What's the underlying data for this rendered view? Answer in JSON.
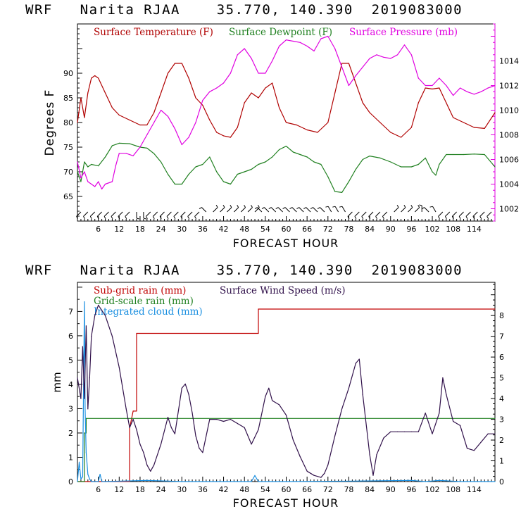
{
  "colors": {
    "temperature": "#b00000",
    "dewpoint": "#208020",
    "pressure": "#e000e0",
    "subgrid_rain": "#c00000",
    "gridscale_rain": "#208020",
    "cloud": "#1a8fe0",
    "wind_speed": "#30104a",
    "axis": "#000000",
    "wind_barb": "#000000"
  },
  "chart_data": [
    {
      "type": "line",
      "title": "WRF   Narita RJAA    35.770, 140.390  2019083000",
      "xlabel": "FORECAST HOUR",
      "ylabel": "Degrees F",
      "xlim": [
        0,
        120
      ],
      "ylim": [
        60,
        100
      ],
      "y2lim": [
        1001,
        1017
      ],
      "x_ticks": [
        6,
        12,
        18,
        24,
        30,
        36,
        42,
        48,
        54,
        60,
        66,
        72,
        78,
        84,
        90,
        96,
        102,
        108,
        114
      ],
      "x_tick_labels": [
        "6",
        "12",
        "18",
        "24",
        "30",
        "36",
        "42",
        "48",
        "54",
        "60",
        "66",
        "72",
        "78",
        "84",
        "90",
        "96",
        "102",
        "108",
        "114"
      ],
      "y_ticks": [
        65,
        70,
        75,
        80,
        85,
        90
      ],
      "y_tick_labels": [
        "65",
        "70",
        "75",
        "80",
        "85",
        "90"
      ],
      "y2_ticks": [
        1002,
        1004,
        1006,
        1008,
        1010,
        1012,
        1014
      ],
      "y2_tick_labels": [
        "1002",
        "1004",
        "1006",
        "1008",
        "1010",
        "1012",
        "1014"
      ],
      "grid": false,
      "legend_position": "top",
      "series": [
        {
          "name": "Surface Temperature (F)",
          "axis": "left",
          "x": [
            0,
            1,
            2,
            3,
            4,
            5,
            6,
            8,
            10,
            12,
            15,
            18,
            20,
            22,
            24,
            26,
            28,
            30,
            32,
            34,
            36,
            38,
            40,
            42,
            44,
            46,
            48,
            50,
            52,
            54,
            56,
            58,
            60,
            63,
            66,
            69,
            72,
            74,
            76,
            78,
            80,
            82,
            84,
            87,
            90,
            93,
            96,
            98,
            100,
            102,
            104,
            106,
            108,
            111,
            114,
            117,
            120
          ],
          "y": [
            80,
            85,
            81,
            86,
            89,
            89.5,
            89,
            86,
            83,
            81.5,
            80.5,
            79.5,
            79.5,
            82,
            86,
            90,
            92,
            92,
            89,
            85,
            83.5,
            80.5,
            78,
            77.3,
            77,
            79,
            84,
            86,
            85,
            87,
            88,
            83,
            80,
            79.5,
            78.5,
            78,
            80,
            86,
            92,
            92,
            88,
            84,
            82,
            80,
            78,
            77,
            79,
            84,
            87,
            86.8,
            87,
            84,
            81,
            80,
            79,
            78.8,
            82
          ]
        },
        {
          "name": "Surface Dewpoint (F)",
          "axis": "left",
          "x": [
            0,
            1,
            2,
            3,
            4,
            6,
            8,
            10,
            12,
            15,
            18,
            20,
            22,
            24,
            26,
            28,
            30,
            32,
            34,
            36,
            38,
            40,
            42,
            44,
            46,
            48,
            50,
            52,
            54,
            56,
            58,
            60,
            62,
            64,
            66,
            68,
            70,
            72,
            74,
            76,
            78,
            80,
            82,
            84,
            87,
            90,
            93,
            96,
            98,
            100,
            102,
            103,
            104,
            106,
            108,
            111,
            114,
            117,
            120
          ],
          "y": [
            70,
            68,
            72,
            71,
            71.5,
            71.2,
            73,
            75.3,
            75.8,
            75.7,
            75,
            74.8,
            73.7,
            72,
            69.5,
            67.5,
            67.5,
            69.5,
            71,
            71.5,
            73,
            70,
            68,
            67.5,
            69.5,
            70,
            70.5,
            71.5,
            72,
            73,
            74.5,
            75.2,
            74,
            73.5,
            73,
            72,
            71.5,
            69,
            66,
            65.8,
            68,
            70.5,
            72.5,
            73.2,
            72.8,
            72,
            71,
            71,
            71.5,
            72.8,
            70,
            69.3,
            71.5,
            73.5,
            73.5,
            73.5,
            73.6,
            73.5,
            71
          ]
        },
        {
          "name": "Surface Pressure (mb)",
          "axis": "right",
          "x": [
            0,
            1,
            2,
            3,
            4,
            5,
            6,
            7,
            8,
            10,
            11,
            12,
            14,
            16,
            18,
            20,
            22,
            24,
            26,
            28,
            30,
            32,
            34,
            36,
            38,
            40,
            42,
            44,
            46,
            48,
            50,
            52,
            54,
            56,
            58,
            60,
            62,
            64,
            66,
            68,
            70,
            72,
            74,
            76,
            78,
            80,
            82,
            84,
            86,
            88,
            90,
            92,
            94,
            96,
            98,
            100,
            102,
            104,
            106,
            108,
            110,
            112,
            114,
            116,
            118,
            120
          ],
          "y": [
            1005.8,
            1004.5,
            1005,
            1004.2,
            1004,
            1003.8,
            1004.2,
            1003.6,
            1004,
            1004.2,
            1005.5,
            1006.5,
            1006.5,
            1006.3,
            1007,
            1008,
            1009,
            1010,
            1009.5,
            1008.5,
            1007.2,
            1007.8,
            1009,
            1010.8,
            1011.5,
            1011.8,
            1012.2,
            1013,
            1014.5,
            1015,
            1014.2,
            1013,
            1013,
            1014,
            1015.2,
            1015.7,
            1015.6,
            1015.5,
            1015.2,
            1014.8,
            1015.8,
            1016,
            1015,
            1013.5,
            1012,
            1012.8,
            1013.5,
            1014.2,
            1014.5,
            1014.3,
            1014.2,
            1014.5,
            1015.3,
            1014.5,
            1012.6,
            1012,
            1012,
            1012.6,
            1012,
            1011.2,
            1011.8,
            1011.5,
            1011.3,
            1011.5,
            1011.8,
            1012
          ]
        }
      ],
      "wind_barbs": {
        "label_free": true,
        "x": [
          1,
          3,
          5,
          7,
          9,
          11,
          13,
          15,
          17,
          19,
          21,
          23,
          25,
          27,
          29,
          31,
          33,
          35,
          37,
          39,
          41,
          43,
          45,
          47,
          49,
          51,
          53,
          55,
          57,
          59,
          61,
          63,
          65,
          67,
          69,
          71,
          73,
          75,
          77,
          79,
          81,
          83,
          85,
          87,
          89,
          91,
          93,
          95,
          97,
          99,
          101,
          103,
          105,
          107,
          109,
          111,
          113,
          115,
          117,
          119
        ],
        "dir_deg": [
          225,
          225,
          225,
          225,
          225,
          225,
          225,
          225,
          270,
          270,
          225,
          225,
          225,
          225,
          225,
          225,
          225,
          225,
          135,
          45,
          45,
          45,
          45,
          45,
          45,
          45,
          135,
          135,
          135,
          135,
          135,
          135,
          135,
          135,
          135,
          135,
          120,
          120,
          120,
          225,
          225,
          225,
          225,
          225,
          225,
          45,
          45,
          45,
          45,
          90,
          135,
          120,
          225,
          225,
          225,
          225,
          225,
          225,
          225,
          225
        ]
      }
    },
    {
      "type": "line",
      "title": "WRF   Narita RJAA    35.770, 140.390  2019083000",
      "xlabel": "FORECAST HOUR",
      "ylabel": "mm",
      "xlim": [
        0,
        120
      ],
      "ylim": [
        0,
        8.2
      ],
      "y2lim": [
        0,
        9.6
      ],
      "x_ticks": [
        6,
        12,
        18,
        24,
        30,
        36,
        42,
        48,
        54,
        60,
        66,
        72,
        78,
        84,
        90,
        96,
        102,
        108,
        114
      ],
      "x_tick_labels": [
        "6",
        "12",
        "18",
        "24",
        "30",
        "36",
        "42",
        "48",
        "54",
        "60",
        "66",
        "72",
        "78",
        "84",
        "90",
        "96",
        "102",
        "108",
        "114"
      ],
      "y_ticks": [
        0,
        1,
        2,
        3,
        4,
        5,
        6,
        7
      ],
      "y_tick_labels": [
        "0",
        "1",
        "2",
        "3",
        "4",
        "5",
        "6",
        "7"
      ],
      "y2_ticks": [
        0,
        1,
        2,
        3,
        4,
        5,
        6,
        7,
        8
      ],
      "y2_tick_labels": [
        "0",
        "1",
        "2",
        "3",
        "4",
        "5",
        "6",
        "7",
        "8"
      ],
      "grid": false,
      "legend_position": "top-left",
      "series": [
        {
          "name": "Sub-grid rain (mm)",
          "axis": "left",
          "step": true,
          "x": [
            0,
            15,
            15,
            16,
            17,
            17,
            52,
            52,
            120
          ],
          "y": [
            0,
            0,
            2.2,
            2.9,
            2.9,
            6.1,
            6.1,
            7.1,
            7.1
          ]
        },
        {
          "name": "Grid-scale rain (mm)",
          "axis": "left",
          "step": true,
          "x": [
            0,
            2,
            2,
            2.5,
            2.5,
            120
          ],
          "y": [
            0,
            0,
            2.0,
            2.0,
            2.6,
            2.6
          ]
        },
        {
          "name": "Integrated cloud (mm)",
          "axis": "left",
          "x": [
            0,
            0.5,
            1,
            1.5,
            2,
            2.2,
            2.5,
            3,
            3.5,
            4,
            5,
            6,
            6.5,
            7,
            8,
            20,
            30,
            50,
            51,
            52,
            60,
            80,
            96,
            100,
            104,
            110,
            120
          ],
          "y": [
            0,
            0.8,
            0.1,
            0.2,
            7.4,
            3,
            1.2,
            0.3,
            0.1,
            0,
            0,
            0,
            0.3,
            0,
            0,
            0.05,
            0,
            0,
            0.25,
            0,
            0,
            0.02,
            0.05,
            0,
            0.05,
            0,
            0
          ]
        },
        {
          "name": "Surface Wind Speed (m/s)",
          "axis": "right",
          "x": [
            0,
            1,
            1.5,
            2,
            2.5,
            3,
            3.5,
            4,
            5,
            6,
            8,
            10,
            12,
            14,
            15,
            16,
            17,
            18,
            19,
            20,
            21,
            22,
            24,
            26,
            27,
            28,
            30,
            31,
            32,
            33,
            34,
            35,
            36,
            38,
            40,
            42,
            44,
            46,
            48,
            50,
            52,
            54,
            55,
            56,
            58,
            60,
            62,
            64,
            66,
            68,
            70,
            71,
            72,
            74,
            76,
            78,
            80,
            81,
            82,
            84,
            85,
            86,
            88,
            90,
            92,
            94,
            96,
            98,
            100,
            102,
            104,
            105,
            106,
            108,
            110,
            112,
            114,
            116,
            118,
            120
          ],
          "y": [
            5,
            4,
            6.5,
            4,
            7.5,
            3.5,
            5,
            7,
            8,
            8.5,
            8,
            7,
            5.5,
            3.5,
            2.6,
            3,
            2.5,
            1.8,
            1.4,
            0.8,
            0.5,
            0.8,
            1.8,
            3.1,
            2.6,
            2.3,
            4.5,
            4.7,
            4.2,
            3.3,
            2.2,
            1.6,
            1.4,
            3,
            3,
            2.9,
            3,
            2.8,
            2.6,
            1.8,
            2.5,
            4.1,
            4.5,
            3.9,
            3.7,
            3.2,
            2,
            1.2,
            0.5,
            0.3,
            0.2,
            0.4,
            0.8,
            2.2,
            3.5,
            4.5,
            5.7,
            5.9,
            4.2,
            1.3,
            0.3,
            1.3,
            2.1,
            2.4,
            2.4,
            2.4,
            2.4,
            2.4,
            3.3,
            2.3,
            3.3,
            5,
            4.2,
            2.9,
            2.7,
            1.6,
            1.5,
            1.9,
            2.3,
            2.3
          ]
        }
      ]
    }
  ]
}
